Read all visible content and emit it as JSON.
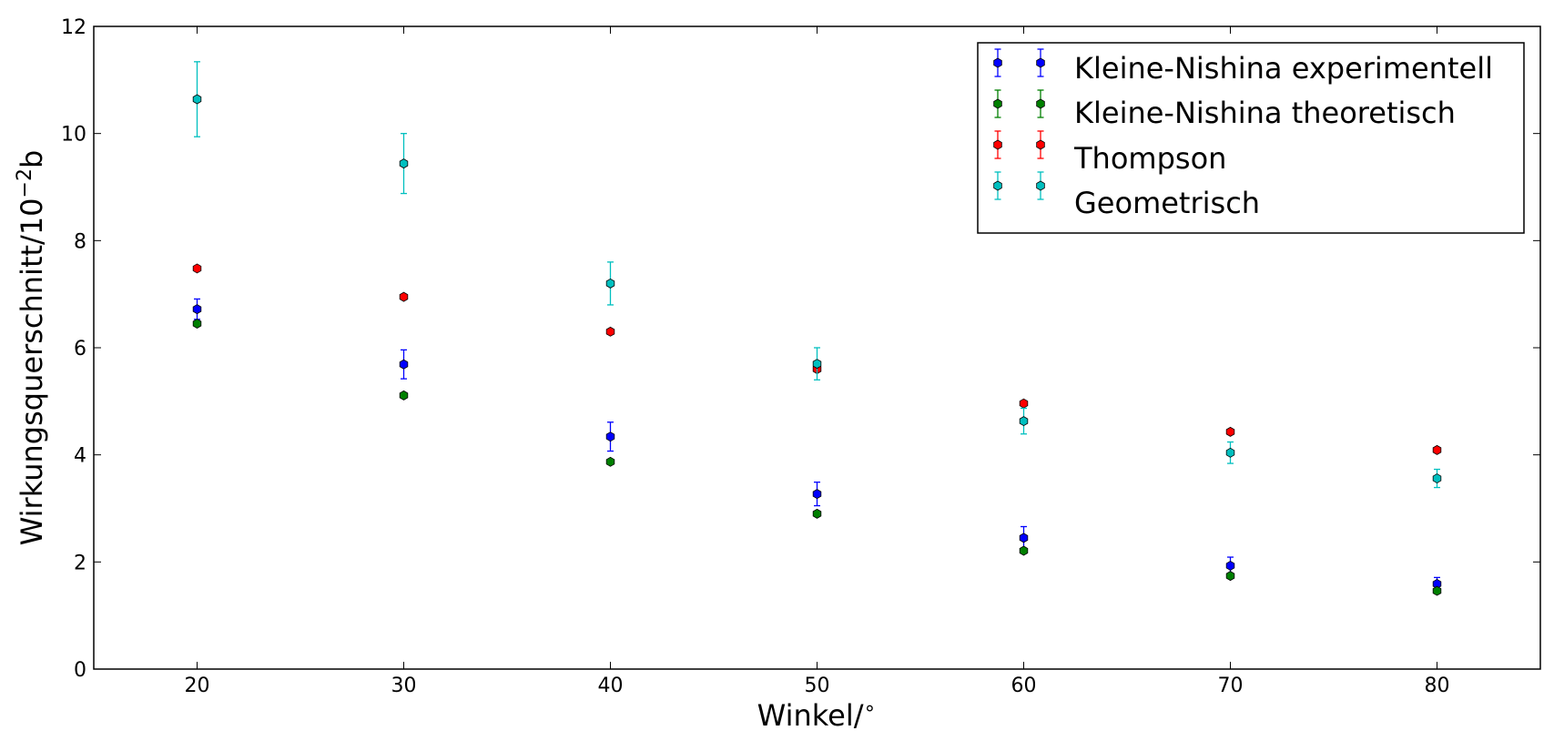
{
  "chart_data": {
    "type": "scatter",
    "title": "",
    "xlabel": "Winkel/",
    "xlabel_superscript": "∘",
    "ylabel": "Wirkungsquerschnitt/10",
    "ylabel_superscript": "−2",
    "ylabel_suffix": "b",
    "xlim": [
      15,
      85
    ],
    "ylim": [
      0,
      12
    ],
    "xticks": [
      20,
      30,
      40,
      50,
      60,
      70,
      80
    ],
    "yticks": [
      0,
      2,
      4,
      6,
      8,
      10,
      12
    ],
    "x": [
      20,
      30,
      40,
      50,
      60,
      70,
      80
    ],
    "grid": false,
    "legend_position": "top-right",
    "series": [
      {
        "name": "Kleine-Nishina experimentell",
        "color": "#0000ff",
        "values": [
          6.72,
          5.69,
          4.34,
          3.27,
          2.45,
          1.93,
          1.59
        ],
        "errors": [
          0.19,
          0.27,
          0.27,
          0.22,
          0.21,
          0.16,
          0.12
        ]
      },
      {
        "name": "Kleine-Nishina theoretisch",
        "color": "#008000",
        "values": [
          6.45,
          5.11,
          3.87,
          2.9,
          2.21,
          1.74,
          1.46
        ],
        "errors": [
          0,
          0,
          0,
          0,
          0,
          0,
          0
        ]
      },
      {
        "name": "Thompson",
        "color": "#ff0000",
        "values": [
          7.48,
          6.95,
          6.3,
          5.6,
          4.96,
          4.43,
          4.09
        ],
        "errors": [
          0,
          0,
          0,
          0,
          0,
          0,
          0
        ]
      },
      {
        "name": "Geometrisch",
        "color": "#00bfbf",
        "values": [
          10.64,
          9.44,
          7.2,
          5.7,
          4.63,
          4.04,
          3.56
        ],
        "errors": [
          0.7,
          0.56,
          0.4,
          0.3,
          0.24,
          0.2,
          0.17
        ]
      }
    ]
  }
}
